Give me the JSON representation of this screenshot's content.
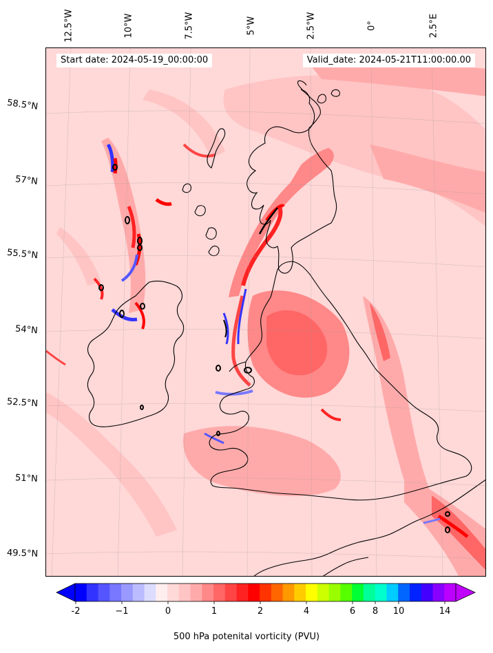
{
  "header": {
    "start_date": "Start date: 2024-05-19_00:00:00",
    "valid_date": "Valid_date: 2024-05-21T11:00:00.00"
  },
  "map": {
    "longitude_labels": [
      "12.5°W",
      "10°W",
      "7.5°W",
      "5°W",
      "2.5°W",
      "0°",
      "2.5°E"
    ],
    "latitude_labels": [
      "58.5°N",
      "57°N",
      "55.5°N",
      "54°N",
      "52.5°N",
      "51°N",
      "49.5°N"
    ],
    "field": "500 hPa potential vorticity",
    "background_color": "#ffd8d8"
  },
  "colorbar": {
    "title": "500 hPa potenital vorticity (PVU)",
    "tick_labels": [
      "-2",
      "−1",
      "0",
      "1",
      "2",
      "4",
      "6",
      "8",
      "10",
      "14"
    ],
    "colors": [
      "#0000ff",
      "#3333ff",
      "#5555ff",
      "#7777ff",
      "#9999ff",
      "#bbbbff",
      "#dcdcff",
      "#ffeeee",
      "#ffd8d8",
      "#ffc4c4",
      "#ffaaaa",
      "#ff8888",
      "#ff6666",
      "#ff4444",
      "#ff2222",
      "#ff0000",
      "#ff3300",
      "#ff6600",
      "#ff9900",
      "#ffcc00",
      "#ffff00",
      "#ccff00",
      "#99ff00",
      "#55ff00",
      "#00ff33",
      "#00ff99",
      "#00ffcc",
      "#00ccff",
      "#0066ff",
      "#0022ff",
      "#4400ff",
      "#8800ff",
      "#bb00ff"
    ],
    "extend_low_color": "#0000ff",
    "extend_high_color": "#c000ff"
  }
}
